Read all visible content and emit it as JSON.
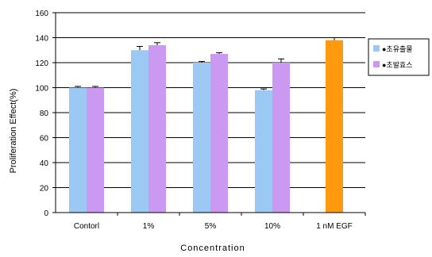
{
  "chart_data": {
    "type": "bar",
    "categories": [
      "Contorl",
      "1%",
      "5%",
      "10%",
      "1 nM EGF"
    ],
    "series": [
      {
        "name": "●초유출물",
        "color": "#9cc8f4",
        "values": [
          100,
          130,
          120,
          98,
          null
        ],
        "errors": [
          1,
          3,
          1,
          1,
          null
        ]
      },
      {
        "name": "●초발효스",
        "color": "#cc99f2",
        "values": [
          100,
          134,
          127,
          120,
          null
        ],
        "errors": [
          1,
          2,
          1,
          3,
          null
        ]
      },
      {
        "name": "",
        "color": "#ff9a0e",
        "values": [
          null,
          null,
          null,
          null,
          138
        ],
        "errors": [
          null,
          null,
          null,
          null,
          2
        ]
      }
    ],
    "xlabel": "Concentration",
    "ylabel": "Proliferation Effect(%)",
    "ylim": [
      0,
      160
    ],
    "yticks": [
      "0",
      "20",
      "40",
      "60",
      "80",
      "100",
      "120",
      "140",
      "160"
    ],
    "grid": "horizontal",
    "legend_position": "right"
  }
}
